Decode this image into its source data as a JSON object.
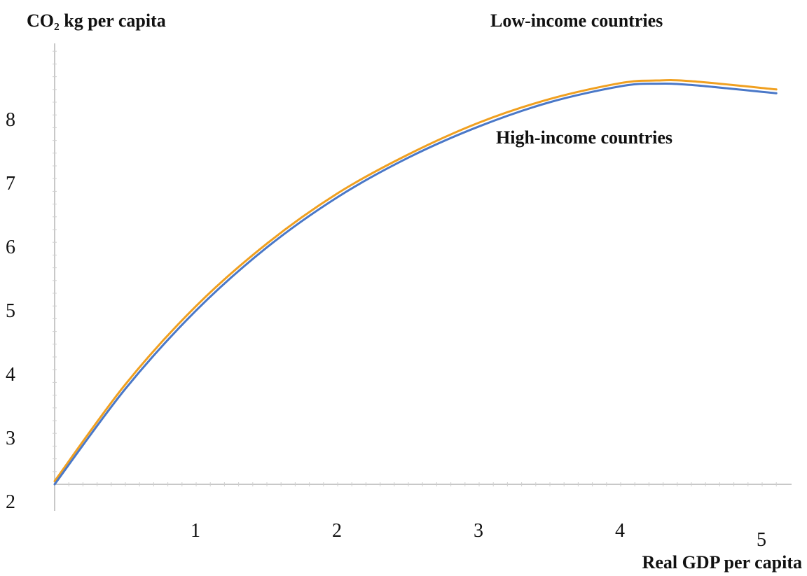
{
  "chart_data": {
    "type": "line",
    "ylabel": "CO₂ kg per capita",
    "xlabel": "Real GDP per capita",
    "xlim": [
      0,
      5.1
    ],
    "ylim": [
      2,
      8.9
    ],
    "xticks": [
      1,
      2,
      3,
      4,
      5
    ],
    "yticks": [
      2,
      3,
      4,
      5,
      6,
      7,
      8
    ],
    "grid": false,
    "series": [
      {
        "name": "Low-income countries",
        "color": "#f0a020",
        "x": [
          0,
          0.5,
          1,
          1.5,
          2,
          2.5,
          3,
          3.5,
          4,
          4.25,
          4.5,
          5.1
        ],
        "y": [
          2.05,
          3.57,
          4.8,
          5.78,
          6.57,
          7.18,
          7.68,
          8.05,
          8.3,
          8.34,
          8.33,
          8.2
        ]
      },
      {
        "name": "High-income countries",
        "color": "#4a78c8",
        "x": [
          0,
          0.5,
          1,
          1.5,
          2,
          2.5,
          3,
          3.5,
          4,
          4.25,
          4.5,
          5.1
        ],
        "y": [
          2.0,
          3.5,
          4.73,
          5.72,
          6.51,
          7.13,
          7.62,
          8.0,
          8.25,
          8.29,
          8.27,
          8.14
        ]
      }
    ]
  }
}
